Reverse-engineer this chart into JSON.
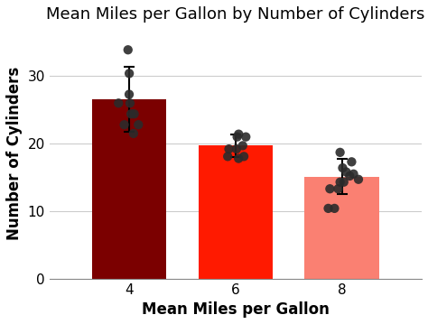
{
  "title": "Mean Miles per Gallon by Number of Cylinders",
  "xlabel": "Mean Miles per Gallon",
  "ylabel": "Number of Cylinders",
  "categories": [
    4,
    6,
    8
  ],
  "bar_means": [
    26.6,
    19.7,
    15.1
  ],
  "bar_errors": [
    4.8,
    1.7,
    2.6
  ],
  "bar_colors": [
    "#7B0000",
    "#FF1A00",
    "#FA8072"
  ],
  "ylim": [
    0,
    37
  ],
  "yticks": [
    0,
    10,
    20,
    30
  ],
  "scatter_points": {
    "4": [
      22.8,
      24.4,
      26.0,
      27.3,
      21.5,
      22.8,
      24.4,
      26.0,
      30.4,
      33.9
    ],
    "6": [
      17.8,
      18.1,
      19.2,
      19.7,
      21.0,
      21.4,
      18.1,
      19.2,
      21.0
    ],
    "8": [
      10.4,
      10.4,
      13.3,
      14.3,
      14.7,
      15.2,
      15.5,
      16.4,
      17.3,
      18.7,
      15.8,
      14.3,
      13.3
    ]
  },
  "scatter_jitter_std": 0.13,
  "scatter_color": "#2b2b2b",
  "scatter_size": 55,
  "scatter_alpha": 0.9,
  "bar_width": 1.4,
  "title_fontsize": 13,
  "axis_label_fontsize": 12,
  "tick_fontsize": 11,
  "grid_color": "#cccccc",
  "background_color": "#ffffff"
}
